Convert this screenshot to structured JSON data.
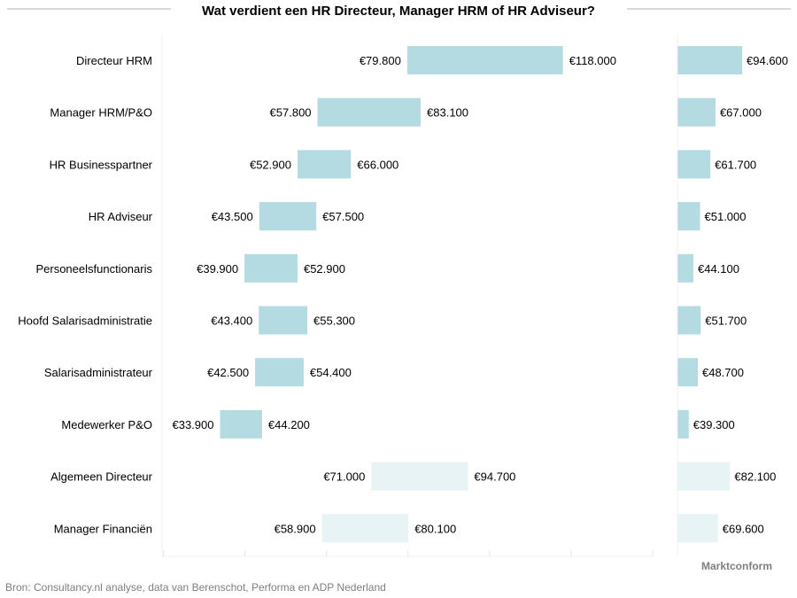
{
  "chart_data": {
    "type": "bar",
    "subtype": "floating-range-bar",
    "title": "Wat verdient een HR Directeur, Manager HRM of HR Adviseur?",
    "categories": [
      "Directeur HRM",
      "Manager HRM/P&O",
      "HR Businesspartner",
      "HR Adviseur",
      "Personeelsfunctionaris",
      "Hoofd Salarisadministratie",
      "Salarisadministrateur",
      "Medewerker P&O",
      "Algemeen Directeur",
      "Manager Financiën"
    ],
    "series": [
      {
        "low": [
          79800,
          57800,
          52900,
          43500,
          39900,
          43400,
          42500,
          33900,
          71000,
          58900
        ],
        "high": [
          118000,
          83100,
          66000,
          57500,
          52900,
          55300,
          54400,
          44200,
          94700,
          80100
        ],
        "low_labels": [
          "€79.800",
          "€57.800",
          "€52.900",
          "€43.500",
          "€39.900",
          "€43.400",
          "€42.500",
          "€33.900",
          "€71.000",
          "€58.900"
        ],
        "high_labels": [
          "€118.000",
          "€83.100",
          "€66.000",
          "€57.500",
          "€52.900",
          "€55.300",
          "€54.400",
          "€44.200",
          "€94.700",
          "€80.100"
        ]
      },
      {
        "name": "Marktconform",
        "values": [
          94600,
          67000,
          61700,
          51000,
          44100,
          51700,
          48700,
          39300,
          82100,
          69600
        ],
        "labels": [
          "€94.600",
          "€67.000",
          "€61.700",
          "€51.000",
          "€44.100",
          "€51.700",
          "€48.700",
          "€39.300",
          "€82.100",
          "€69.600"
        ]
      }
    ],
    "highlighted": [
      true,
      true,
      true,
      true,
      true,
      true,
      true,
      true,
      false,
      false
    ],
    "xlim": [
      20000,
      140000
    ],
    "xticks": [
      20000,
      40000,
      60000,
      80000,
      100000,
      120000,
      140000
    ],
    "tick_labels_shown": false,
    "grid": false,
    "colors": {
      "highlight": "#b4dbe1",
      "muted": "#e8f3f5"
    }
  },
  "right_panel_label": "Marktconform",
  "source": "Bron: Consultancy.nl analyse, data van Berenschot, Performa en ADP Nederland"
}
